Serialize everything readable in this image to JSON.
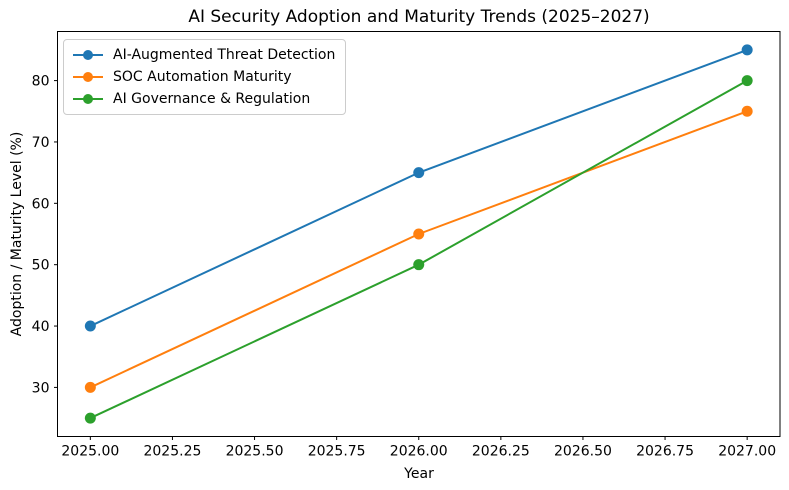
{
  "chart_data": {
    "type": "line",
    "title": "AI Security Adoption and Maturity Trends (2025–2027)",
    "xlabel": "Year",
    "ylabel": "Adoption / Maturity Level (%)",
    "x": [
      2025,
      2026,
      2027
    ],
    "series": [
      {
        "name": "AI-Augmented Threat Detection",
        "color": "#1f77b4",
        "values": [
          40,
          65,
          85
        ]
      },
      {
        "name": "SOC Automation Maturity",
        "color": "#ff7f0e",
        "values": [
          30,
          55,
          75
        ]
      },
      {
        "name": "AI Governance & Regulation",
        "color": "#2ca02c",
        "values": [
          25,
          50,
          80
        ]
      }
    ],
    "xlim": [
      2024.9,
      2027.1
    ],
    "ylim": [
      22,
      88
    ],
    "xticks": [
      2025.0,
      2025.25,
      2025.5,
      2025.75,
      2026.0,
      2026.25,
      2026.5,
      2026.75,
      2027.0
    ],
    "xtick_labels": [
      "2025.00",
      "2025.25",
      "2025.50",
      "2025.75",
      "2026.00",
      "2026.25",
      "2026.50",
      "2026.75",
      "2027.00"
    ],
    "yticks": [
      30,
      40,
      50,
      60,
      70,
      80
    ],
    "ytick_labels": [
      "30",
      "40",
      "50",
      "60",
      "70",
      "80"
    ],
    "grid": false,
    "legend_position": "upper left",
    "marker": "o",
    "marker_radius": 5.5,
    "line_width": 2,
    "axis_color": "#000000",
    "background": "#ffffff"
  }
}
